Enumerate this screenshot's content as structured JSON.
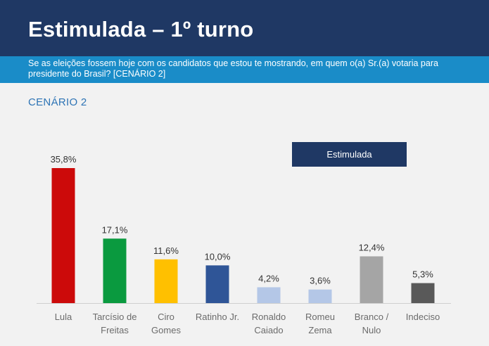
{
  "header": {
    "title": "Estimulada – 1º turno",
    "subtitle": "Se as eleições fossem hoje com os candidatos que estou te mostrando, em quem o(a) Sr.(a) votaria para presidente do Brasil? [CENÁRIO 2]"
  },
  "scenario_label": "CENÁRIO 2",
  "legend": {
    "label": "Estimulada",
    "color": "#1f3864"
  },
  "chart_data": {
    "type": "bar",
    "categories": [
      "Lula",
      "Tarcísio de Freitas",
      "Ciro Gomes",
      "Ratinho Jr.",
      "Ronaldo Caiado",
      "Romeu Zema",
      "Branco / Nulo",
      "Indeciso"
    ],
    "category_lines": [
      [
        "Lula"
      ],
      [
        "Tarcísio de",
        "Freitas"
      ],
      [
        "Ciro",
        "Gomes"
      ],
      [
        "Ratinho Jr."
      ],
      [
        "Ronaldo",
        "Caiado"
      ],
      [
        "Romeu",
        "Zema"
      ],
      [
        "Branco /",
        "Nulo"
      ],
      [
        "Indeciso"
      ]
    ],
    "values": [
      35.8,
      17.1,
      11.6,
      10.0,
      4.2,
      3.6,
      12.4,
      5.3
    ],
    "value_labels": [
      "35,8%",
      "17,1%",
      "11,6%",
      "10,0%",
      "4,2%",
      "3,6%",
      "12,4%",
      "5,3%"
    ],
    "colors": [
      "#cc0a0a",
      "#0a9a3f",
      "#ffc000",
      "#2f5597",
      "#b4c7e7",
      "#b4c7e7",
      "#a5a5a5",
      "#595959"
    ],
    "series": [
      {
        "name": "Estimulada",
        "values": [
          35.8,
          17.1,
          11.6,
          10.0,
          4.2,
          3.6,
          12.4,
          5.3
        ]
      }
    ],
    "ylim": [
      0,
      35.8
    ],
    "grid": false,
    "legend_position": "top-right"
  }
}
